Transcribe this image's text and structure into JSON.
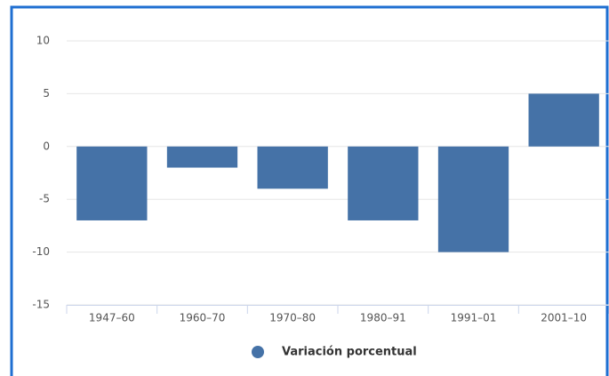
{
  "chart_data": {
    "type": "bar",
    "categories": [
      "1947–60",
      "1960–70",
      "1970–80",
      "1980–91",
      "1991–01",
      "2001–10"
    ],
    "series": [
      {
        "name": "Variación porcentual",
        "color": "#4572a7",
        "values": [
          -7,
          -2,
          -4,
          -7,
          -10,
          5
        ]
      }
    ],
    "ylim": [
      -15,
      10
    ],
    "yticks": [
      -15,
      -10,
      -5,
      0,
      5,
      10
    ],
    "grid": true,
    "legend": "bottom"
  }
}
